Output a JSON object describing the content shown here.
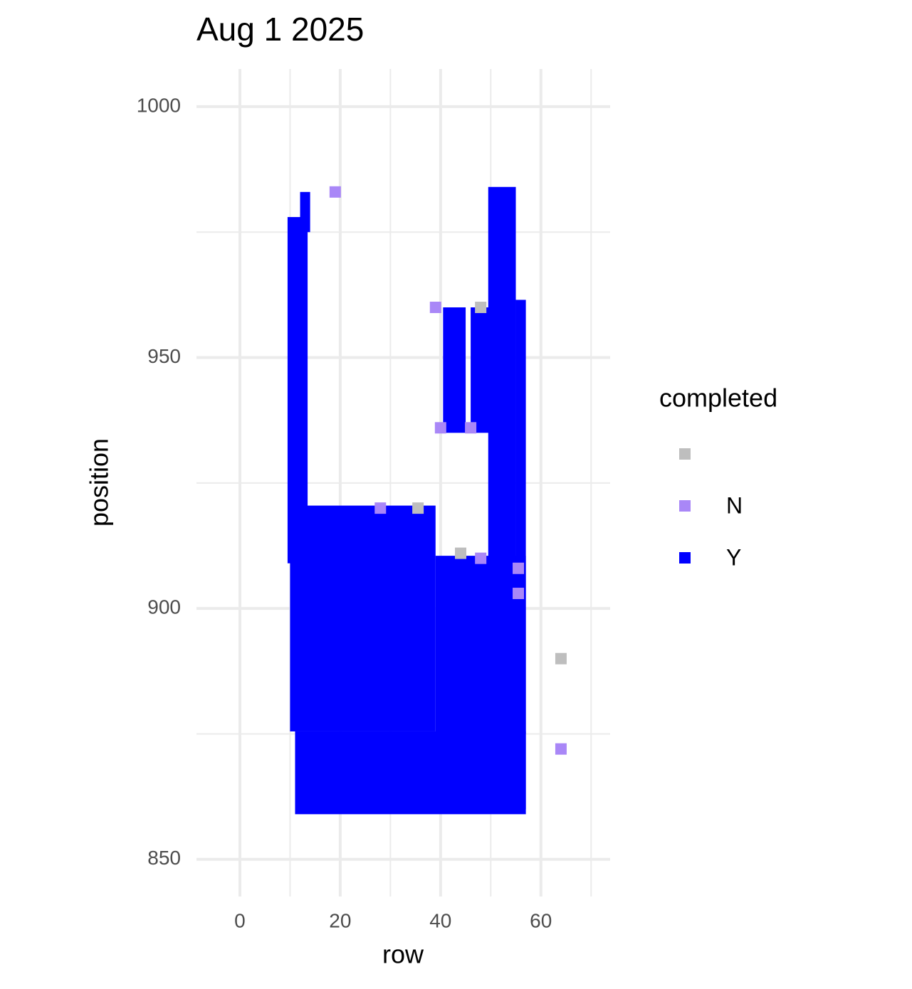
{
  "chart_data": {
    "type": "scatter",
    "title": "Aug 1 2025",
    "x_label": "row",
    "y_label": "position",
    "xlim": [
      -8.65,
      73.8
    ],
    "ylim": [
      842.6,
      1007.5
    ],
    "xticks": [
      0,
      20,
      40,
      60
    ],
    "yticks": [
      850,
      900,
      950,
      1000
    ],
    "x_minor_ticks": [
      10,
      30,
      50,
      70
    ],
    "y_minor_ticks": [
      875,
      925,
      975
    ],
    "grid": true,
    "legend_title": "completed",
    "legend_position": "right",
    "series": [
      {
        "name": null,
        "color": "#bebebe",
        "x": [
          64,
          48,
          44,
          35.5
        ],
        "values": [
          890,
          960,
          911,
          920
        ]
      },
      {
        "name": "N",
        "color": "#a987f7",
        "x": [
          19,
          39,
          64,
          40,
          46,
          28,
          48,
          55.5,
          55.5
        ],
        "values": [
          983,
          960,
          872,
          936,
          936,
          920,
          910,
          908,
          903
        ]
      },
      {
        "name": "Y",
        "color": "#0000ff",
        "xmin": [
          9.5,
          12,
          10,
          11,
          39,
          49.5,
          55,
          40.5,
          46
        ],
        "xmax": [
          13.5,
          14,
          39,
          57,
          57,
          55,
          57,
          45,
          50
        ],
        "ymin": [
          909,
          975,
          875.5,
          859,
          875,
          860,
          860,
          935,
          935
        ],
        "ymax": [
          978,
          983,
          920.5,
          875.5,
          910.5,
          984,
          961.5,
          960,
          960
        ]
      }
    ]
  }
}
